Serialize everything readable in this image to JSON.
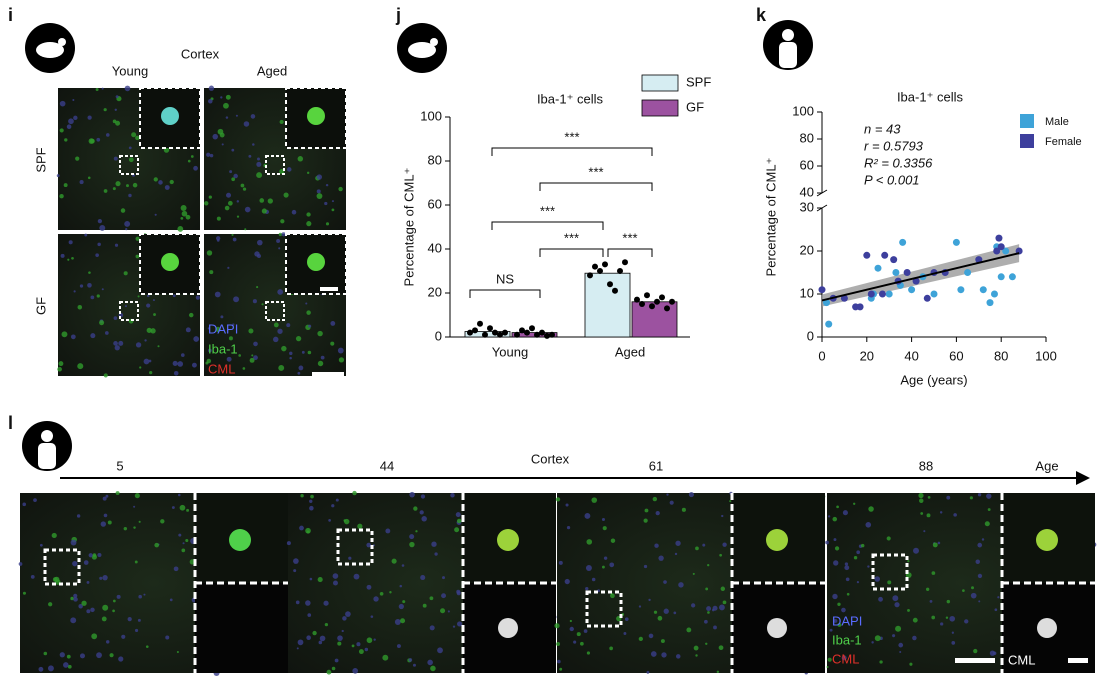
{
  "panel_labels": [
    "i",
    "j",
    "k",
    "l"
  ],
  "panel_i": {
    "region": "Cortex",
    "columns": [
      "Young",
      "Aged"
    ],
    "rows": [
      "SPF",
      "GF"
    ],
    "legend": [
      "DAPI",
      "Iba-1",
      "CML"
    ]
  },
  "chart_data": [
    {
      "type": "bar",
      "title": "Iba-1⁺ cells",
      "y_label": "Percentage of CML⁺",
      "categories": [
        "Young",
        "Aged"
      ],
      "series": [
        {
          "name": "SPF",
          "color": "#d6edf2",
          "values": [
            2.5,
            29
          ],
          "points": [
            [
              2,
              3,
              6,
              1,
              4,
              2,
              1,
              2
            ],
            [
              28,
              32,
              30,
              33,
              24,
              21,
              30,
              34
            ]
          ]
        },
        {
          "name": "GF",
          "color": "#9c52a0",
          "values": [
            2,
            16
          ],
          "points": [
            [
              1,
              3,
              2,
              4,
              1,
              2,
              0.5,
              1
            ],
            [
              17,
              15,
              19,
              14,
              16,
              18,
              13,
              16
            ]
          ]
        }
      ],
      "annotations": [
        "NS",
        "***",
        "***",
        "***",
        "***",
        "***"
      ],
      "ylim": [
        0,
        100
      ],
      "yticks": [
        0,
        20,
        40,
        60,
        80,
        100
      ]
    },
    {
      "type": "scatter",
      "title": "Iba-1⁺ cells",
      "y_label": "Percentage of CML⁺",
      "x_label": "Age (years)",
      "stats": [
        "n = 43",
        "r = 0.5793",
        "R² = 0.3356",
        "P < 0.001"
      ],
      "series": [
        {
          "name": "Male",
          "color": "#3ea3d8",
          "x": [
            2,
            3,
            22,
            23,
            25,
            30,
            33,
            36,
            35,
            40,
            45,
            50,
            60,
            62,
            65,
            72,
            75,
            77,
            78,
            80,
            82,
            85
          ],
          "y": [
            8,
            3,
            9,
            10,
            16,
            10,
            15,
            22,
            12,
            11,
            14,
            10,
            22,
            11,
            15,
            11,
            8,
            10,
            21,
            14,
            20,
            14
          ]
        },
        {
          "name": "Female",
          "color": "#3d3f9d",
          "x": [
            0,
            5,
            10,
            15,
            17,
            20,
            22,
            27,
            28,
            32,
            34,
            38,
            42,
            47,
            50,
            55,
            70,
            78,
            79,
            80,
            88
          ],
          "y": [
            11,
            9,
            9,
            7,
            7,
            19,
            10,
            10,
            19,
            18,
            13,
            15,
            13,
            9,
            15,
            15,
            18,
            20,
            23,
            21,
            20
          ]
        }
      ],
      "fit": {
        "x": [
          0,
          88
        ],
        "y": [
          8.5,
          19.5
        ]
      },
      "xlim": [
        0,
        100
      ],
      "xticks": [
        0,
        20,
        40,
        60,
        80,
        100
      ],
      "ylim": [
        0,
        30
      ],
      "yticks": [
        0,
        10,
        20,
        30
      ],
      "ylim_upper": [
        40,
        100
      ],
      "yticks_upper": [
        40,
        60,
        80,
        100
      ]
    }
  ],
  "panel_l": {
    "region": "Cortex",
    "axis_label": "Age",
    "ages": [
      "5",
      "44",
      "61",
      "88"
    ],
    "legend": [
      "DAPI",
      "Iba-1",
      "CML"
    ],
    "inset_label": "CML"
  }
}
